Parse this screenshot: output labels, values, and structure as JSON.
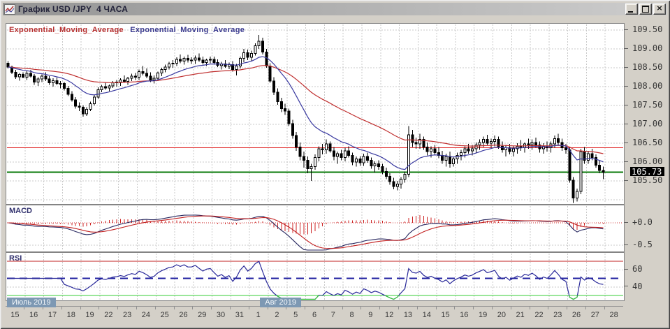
{
  "window": {
    "title": "График USD /JPY  4 ЧАСА",
    "icon": "chart-icon",
    "controls": {
      "minimize": "minimize",
      "maximize": "maximize",
      "close_glyph": "x"
    }
  },
  "legend": [
    {
      "label": "Exponential_Moving_Average",
      "color": "#b63030"
    },
    {
      "label": "Exponential_Moving_Average",
      "color": "#3a3a8e"
    }
  ],
  "price_scale": {
    "ticks": [
      "109.50",
      "109.00",
      "108.50",
      "108.00",
      "107.50",
      "107.00",
      "106.50",
      "106.00",
      "105.50"
    ],
    "tick_values": [
      109.5,
      109.0,
      108.5,
      108.0,
      107.5,
      107.0,
      106.5,
      106.0,
      105.5
    ],
    "current_price_tag": "105.73",
    "current_price_value": 105.73
  },
  "macd_panel": {
    "label": "MACD",
    "scale_labels": [
      "+0.0",
      "-0.5"
    ],
    "scale_values": [
      0.0,
      -0.5
    ]
  },
  "rsi_panel": {
    "label": "RSI",
    "scale_labels": [
      "60",
      "40"
    ],
    "scale_values": [
      60,
      40
    ],
    "levels": {
      "upper": 70,
      "middle": 50,
      "lower": 30
    }
  },
  "x_axis": {
    "days": [
      "15",
      "16",
      "17",
      "18",
      "19",
      "22",
      "23",
      "24",
      "25",
      "26",
      "29",
      "30",
      "31",
      "1",
      "2",
      "5",
      "6",
      "7",
      "8",
      "9",
      "12",
      "13",
      "14",
      "15",
      "16",
      "19",
      "20",
      "21",
      "22",
      "23",
      "26",
      "27",
      "28"
    ],
    "months": [
      {
        "label": "Июль 2019",
        "day_index": 0
      },
      {
        "label": "Авг 2019",
        "day_index": 13
      }
    ]
  },
  "colors": {
    "grid": "#c9c9c9",
    "candle_up_fill": "#ffffff",
    "candle_down_fill": "#000000",
    "candle_stroke": "#000000",
    "ema_fast": "#3a3aa0",
    "ema_slow": "#c03030",
    "hline_red": "#e02020",
    "hline_green": "#0a7a0a",
    "macd_line": "#26265e",
    "macd_signal": "#c22020",
    "macd_hist": "#cc2222",
    "macd_zero": "#cc3333",
    "rsi_line": "#2a2a9a",
    "rsi_overbought": "#d020c0",
    "rsi_oversold": "#38c838",
    "rsi_upper": "#c02020",
    "rsi_middle": "#2020a0",
    "rsi_lower": "#34cc34",
    "month_box": "#7d98b3",
    "window_title_text": "#23233a"
  },
  "chart_data": {
    "type": "candlestick-ohlc",
    "symbol": "USD/JPY",
    "timeframe": "4 часа",
    "title": "График USD /JPY 4 ЧАСА",
    "ylim_price": [
      104.89,
      109.67
    ],
    "ylim_macd": [
      -0.64,
      0.39
    ],
    "ylim_rsi": [
      24,
      80
    ],
    "hlines": [
      {
        "value": 106.38,
        "color": "#e02020",
        "width": 1
      },
      {
        "value": 105.73,
        "color": "#0a7a0a",
        "width": 2
      }
    ],
    "grid": true,
    "candles_per_day": 5,
    "indicators": {
      "ema_fast_period": 16,
      "ema_slow_period": 48,
      "macd_periods": [
        12,
        26,
        9
      ],
      "rsi_period": 14
    },
    "ohlc": [
      [
        108.62,
        108.68,
        108.48,
        108.52
      ],
      [
        108.52,
        108.56,
        108.33,
        108.38
      ],
      [
        108.38,
        108.44,
        108.2,
        108.26
      ],
      [
        108.26,
        108.36,
        108.16,
        108.32
      ],
      [
        108.32,
        108.38,
        108.22,
        108.25
      ],
      [
        108.25,
        108.42,
        108.18,
        108.35
      ],
      [
        108.35,
        108.44,
        108.24,
        108.28
      ],
      [
        108.28,
        108.33,
        108.05,
        108.12
      ],
      [
        108.12,
        108.25,
        108.02,
        108.2
      ],
      [
        108.2,
        108.32,
        108.12,
        108.28
      ],
      [
        108.28,
        108.38,
        108.15,
        108.2
      ],
      [
        108.2,
        108.28,
        108.05,
        108.1
      ],
      [
        108.1,
        108.22,
        108.0,
        108.16
      ],
      [
        108.16,
        108.24,
        108.04,
        108.08
      ],
      [
        108.08,
        108.15,
        107.95,
        108.08
      ],
      [
        108.08,
        108.12,
        107.9,
        107.95
      ],
      [
        107.95,
        108.02,
        107.75,
        107.8
      ],
      [
        107.8,
        107.88,
        107.6,
        107.65
      ],
      [
        107.65,
        107.72,
        107.42,
        107.48
      ],
      [
        107.48,
        107.58,
        107.35,
        107.45
      ],
      [
        107.45,
        107.5,
        107.2,
        107.28
      ],
      [
        107.28,
        107.45,
        107.22,
        107.4
      ],
      [
        107.4,
        107.6,
        107.35,
        107.55
      ],
      [
        107.55,
        107.78,
        107.5,
        107.72
      ],
      [
        107.72,
        107.98,
        107.68,
        107.92
      ],
      [
        107.92,
        108.05,
        107.85,
        108.0
      ],
      [
        108.0,
        108.1,
        107.92,
        107.96
      ],
      [
        107.96,
        108.06,
        107.88,
        108.02
      ],
      [
        108.02,
        108.15,
        107.96,
        108.1
      ],
      [
        108.1,
        108.18,
        108.0,
        108.12
      ],
      [
        108.12,
        108.22,
        108.02,
        108.18
      ],
      [
        108.18,
        108.3,
        108.1,
        108.14
      ],
      [
        108.14,
        108.26,
        108.05,
        108.22
      ],
      [
        108.22,
        108.34,
        108.15,
        108.28
      ],
      [
        108.28,
        108.36,
        108.18,
        108.25
      ],
      [
        108.25,
        108.45,
        108.18,
        108.4
      ],
      [
        108.4,
        108.55,
        108.3,
        108.35
      ],
      [
        108.35,
        108.48,
        108.22,
        108.28
      ],
      [
        108.28,
        108.38,
        108.12,
        108.18
      ],
      [
        108.18,
        108.3,
        108.08,
        108.22
      ],
      [
        108.22,
        108.4,
        108.15,
        108.36
      ],
      [
        108.36,
        108.5,
        108.28,
        108.45
      ],
      [
        108.45,
        108.58,
        108.38,
        108.52
      ],
      [
        108.52,
        108.66,
        108.45,
        108.6
      ],
      [
        108.6,
        108.7,
        108.5,
        108.62
      ],
      [
        108.62,
        108.78,
        108.55,
        108.72
      ],
      [
        108.72,
        108.85,
        108.62,
        108.68
      ],
      [
        108.68,
        108.8,
        108.58,
        108.75
      ],
      [
        108.75,
        108.84,
        108.64,
        108.7
      ],
      [
        108.7,
        108.78,
        108.6,
        108.7
      ],
      [
        108.7,
        108.82,
        108.6,
        108.76
      ],
      [
        108.76,
        108.88,
        108.66,
        108.7
      ],
      [
        108.7,
        108.8,
        108.58,
        108.64
      ],
      [
        108.64,
        108.74,
        108.55,
        108.7
      ],
      [
        108.7,
        108.8,
        108.62,
        108.72
      ],
      [
        108.72,
        108.8,
        108.58,
        108.64
      ],
      [
        108.64,
        108.72,
        108.52,
        108.56
      ],
      [
        108.56,
        108.66,
        108.45,
        108.6
      ],
      [
        108.6,
        108.7,
        108.5,
        108.54
      ],
      [
        108.54,
        108.64,
        108.46,
        108.58
      ],
      [
        108.58,
        108.68,
        108.4,
        108.45
      ],
      [
        108.45,
        108.6,
        108.3,
        108.55
      ],
      [
        108.55,
        108.8,
        108.48,
        108.75
      ],
      [
        108.75,
        109.0,
        108.65,
        108.9
      ],
      [
        108.9,
        108.98,
        108.7,
        108.78
      ],
      [
        108.78,
        108.95,
        108.68,
        108.88
      ],
      [
        108.88,
        109.15,
        108.82,
        109.08
      ],
      [
        109.08,
        109.37,
        109.0,
        109.2
      ],
      [
        109.2,
        109.3,
        108.85,
        108.92
      ],
      [
        108.92,
        109.0,
        108.5,
        108.55
      ],
      [
        108.55,
        108.62,
        108.1,
        108.15
      ],
      [
        108.15,
        108.25,
        107.78,
        107.85
      ],
      [
        107.85,
        107.95,
        107.52,
        107.6
      ],
      [
        107.6,
        107.7,
        107.32,
        107.42
      ],
      [
        107.42,
        107.55,
        107.25,
        107.35
      ],
      [
        107.35,
        107.42,
        106.95,
        107.02
      ],
      [
        107.02,
        107.12,
        106.62,
        106.7
      ],
      [
        106.7,
        106.8,
        106.3,
        106.4
      ],
      [
        106.4,
        106.52,
        106.05,
        106.15
      ],
      [
        106.15,
        106.28,
        105.85,
        106.05
      ],
      [
        106.05,
        106.15,
        105.7,
        105.82
      ],
      [
        105.82,
        105.95,
        105.5,
        105.88
      ],
      [
        105.88,
        106.2,
        105.8,
        106.12
      ],
      [
        106.12,
        106.42,
        106.02,
        106.35
      ],
      [
        106.35,
        106.48,
        106.2,
        106.32
      ],
      [
        106.32,
        106.6,
        106.22,
        106.48
      ],
      [
        106.48,
        106.55,
        106.25,
        106.3
      ],
      [
        106.3,
        106.4,
        106.05,
        106.15
      ],
      [
        106.15,
        106.28,
        105.95,
        106.22
      ],
      [
        106.22,
        106.32,
        106.05,
        106.12
      ],
      [
        106.12,
        106.38,
        106.02,
        106.3
      ],
      [
        106.3,
        106.42,
        106.12,
        106.18
      ],
      [
        106.18,
        106.25,
        105.92,
        106.0
      ],
      [
        106.0,
        106.15,
        105.88,
        106.08
      ],
      [
        106.08,
        106.16,
        105.9,
        105.98
      ],
      [
        105.98,
        106.22,
        105.9,
        106.15
      ],
      [
        106.15,
        106.25,
        105.98,
        106.05
      ],
      [
        106.05,
        106.12,
        105.82,
        105.9
      ],
      [
        105.9,
        106.02,
        105.72,
        105.95
      ],
      [
        105.95,
        106.05,
        105.8,
        105.88
      ],
      [
        105.88,
        105.95,
        105.68,
        105.75
      ],
      [
        105.75,
        105.85,
        105.55,
        105.62
      ],
      [
        105.62,
        105.7,
        105.4,
        105.48
      ],
      [
        105.48,
        105.58,
        105.28,
        105.35
      ],
      [
        105.35,
        105.5,
        105.25,
        105.42
      ],
      [
        105.42,
        105.6,
        105.3,
        105.55
      ],
      [
        105.55,
        105.75,
        105.45,
        105.68
      ],
      [
        105.68,
        106.95,
        105.6,
        106.72
      ],
      [
        106.72,
        106.85,
        106.4,
        106.52
      ],
      [
        106.52,
        106.65,
        106.35,
        106.48
      ],
      [
        106.48,
        106.75,
        106.35,
        106.6
      ],
      [
        106.6,
        106.68,
        106.32,
        106.4
      ],
      [
        106.4,
        106.52,
        106.18,
        106.28
      ],
      [
        106.28,
        106.42,
        106.12,
        106.35
      ],
      [
        106.35,
        106.45,
        106.18,
        106.25
      ],
      [
        106.25,
        106.4,
        106.1,
        106.18
      ],
      [
        106.18,
        106.3,
        105.95,
        106.05
      ],
      [
        106.05,
        106.22,
        105.88,
        106.15
      ],
      [
        106.15,
        106.28,
        105.85,
        105.95
      ],
      [
        105.95,
        106.15,
        105.88,
        106.08
      ],
      [
        106.08,
        106.25,
        105.95,
        106.18
      ],
      [
        106.18,
        106.32,
        106.05,
        106.25
      ],
      [
        106.25,
        106.42,
        106.12,
        106.35
      ],
      [
        106.35,
        106.48,
        106.22,
        106.3
      ],
      [
        106.3,
        106.45,
        106.18,
        106.35
      ],
      [
        106.35,
        106.52,
        106.25,
        106.45
      ],
      [
        106.45,
        106.6,
        106.32,
        106.52
      ],
      [
        106.52,
        106.68,
        106.4,
        106.6
      ],
      [
        106.6,
        106.72,
        106.45,
        106.5
      ],
      [
        106.5,
        106.62,
        106.38,
        106.55
      ],
      [
        106.55,
        106.7,
        106.42,
        106.6
      ],
      [
        106.6,
        106.68,
        106.35,
        106.42
      ],
      [
        106.42,
        106.55,
        106.25,
        106.32
      ],
      [
        106.32,
        106.45,
        106.15,
        106.38
      ],
      [
        106.38,
        106.48,
        106.2,
        106.28
      ],
      [
        106.28,
        106.42,
        106.15,
        106.35
      ],
      [
        106.35,
        106.5,
        106.22,
        106.42
      ],
      [
        106.42,
        106.58,
        106.3,
        106.38
      ],
      [
        106.38,
        106.52,
        106.25,
        106.48
      ],
      [
        106.48,
        106.62,
        106.35,
        106.45
      ],
      [
        106.45,
        106.6,
        106.32,
        106.52
      ],
      [
        106.52,
        106.65,
        106.38,
        106.45
      ],
      [
        106.45,
        106.55,
        106.25,
        106.35
      ],
      [
        106.35,
        106.5,
        106.22,
        106.42
      ],
      [
        106.42,
        106.55,
        106.28,
        106.38
      ],
      [
        106.38,
        106.55,
        106.25,
        106.48
      ],
      [
        106.48,
        106.7,
        106.38,
        106.62
      ],
      [
        106.62,
        106.75,
        106.45,
        106.52
      ],
      [
        106.52,
        106.62,
        106.3,
        106.38
      ],
      [
        106.38,
        106.48,
        106.22,
        106.32
      ],
      [
        106.32,
        106.38,
        105.45,
        105.52
      ],
      [
        105.52,
        105.6,
        104.92,
        105.05
      ],
      [
        105.05,
        105.3,
        104.95,
        105.22
      ],
      [
        105.22,
        106.35,
        105.15,
        106.28
      ],
      [
        106.28,
        106.4,
        105.95,
        106.05
      ],
      [
        106.05,
        106.3,
        105.95,
        106.22
      ],
      [
        106.22,
        106.35,
        106.05,
        106.12
      ],
      [
        106.12,
        106.2,
        105.85,
        105.92
      ],
      [
        105.92,
        106.05,
        105.7,
        105.78
      ],
      [
        105.78,
        105.88,
        105.55,
        105.73
      ]
    ]
  }
}
